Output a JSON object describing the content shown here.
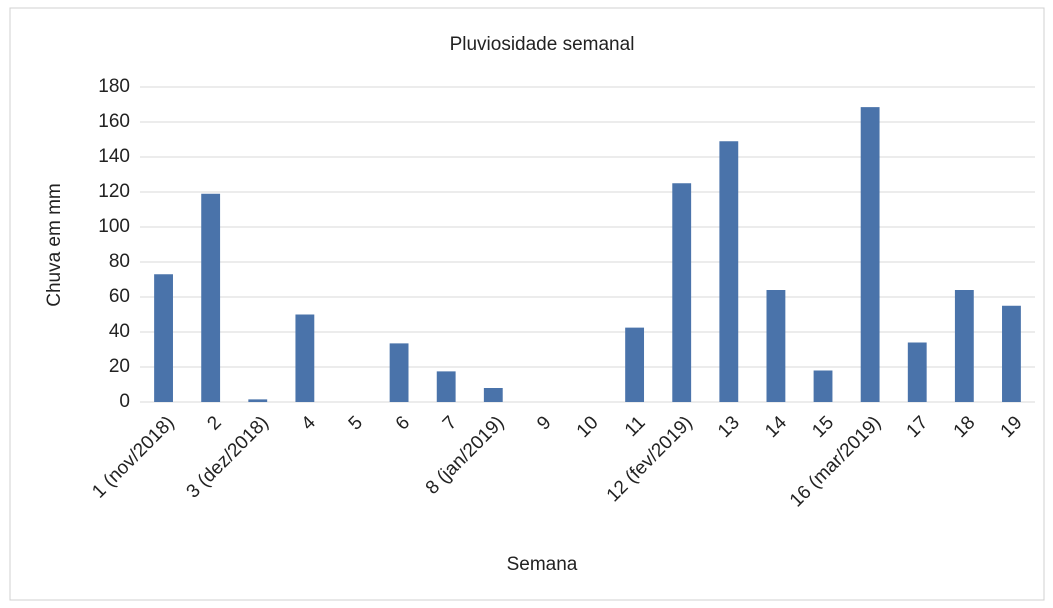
{
  "chart_data": {
    "type": "bar",
    "title": "Pluviosidade semanal",
    "x_label": "Semana",
    "y_label": "Chuva em mm",
    "categories": [
      "1 (nov/2018)",
      "2",
      "3 (dez/2018)",
      "4",
      "5",
      "6",
      "7",
      "8 (jan/2019)",
      "9",
      "10",
      "11",
      "12 (fev/2019)",
      "13",
      "14",
      "15",
      "16 (mar/2019)",
      "17",
      "18",
      "19"
    ],
    "values": [
      73,
      119,
      1.5,
      50,
      0,
      33.5,
      17.5,
      8,
      0,
      0,
      42.5,
      125,
      149,
      64,
      18,
      168.5,
      34,
      64,
      55
    ],
    "color": "#4a73aa",
    "ylim": [
      0,
      180
    ],
    "yticks": [
      0,
      20,
      40,
      60,
      80,
      100,
      120,
      140,
      160,
      180
    ],
    "grid": true
  }
}
